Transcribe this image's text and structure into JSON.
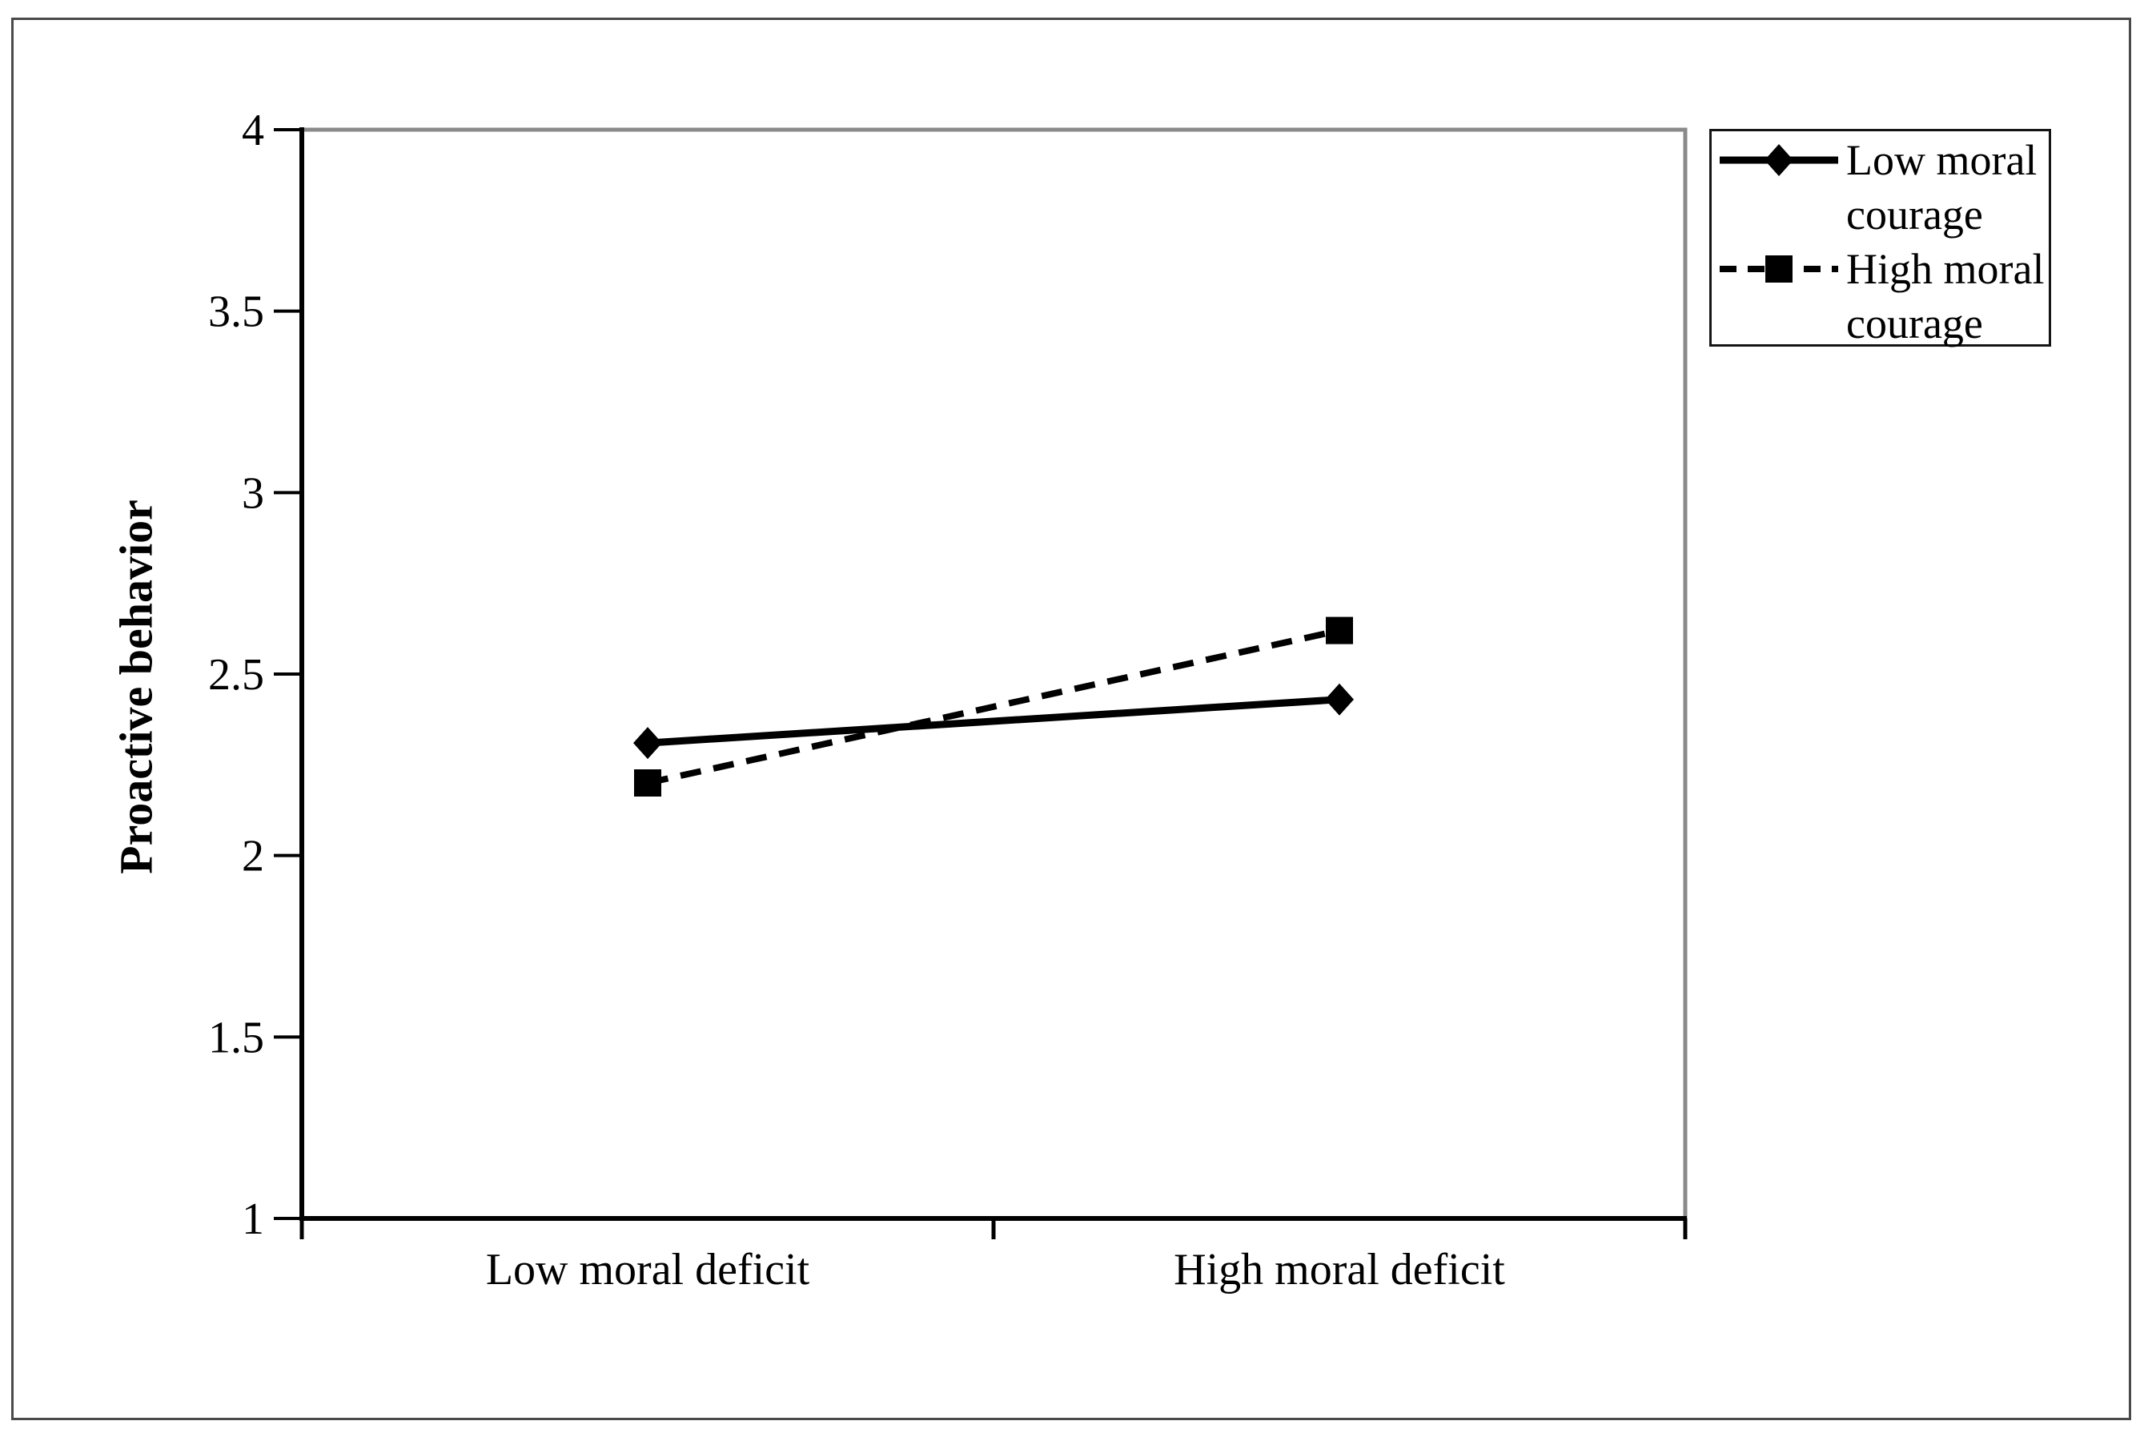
{
  "figure": {
    "background": "#ffffff",
    "border_color": "#4a4a4a"
  },
  "chart_data": {
    "type": "line",
    "title": "",
    "categories": [
      "Low moral deficit",
      "High moral deficit"
    ],
    "series": [
      {
        "name": "Low moral courage",
        "values": [
          2.31,
          2.43
        ],
        "line_style": "solid",
        "marker": "diamond",
        "color": "#000000"
      },
      {
        "name": "High moral courage",
        "values": [
          2.2,
          2.62
        ],
        "line_style": "dashed",
        "marker": "square",
        "color": "#000000"
      }
    ],
    "xlabel": "",
    "ylabel": "Proactive behavior",
    "ylim": [
      1,
      4
    ],
    "yticks": [
      {
        "value": 4,
        "label": "4"
      },
      {
        "value": 3.5,
        "label": "3.5"
      },
      {
        "value": 3,
        "label": "3"
      },
      {
        "value": 2.5,
        "label": "2.5"
      },
      {
        "value": 2,
        "label": "2"
      },
      {
        "value": 1.5,
        "label": "1.5"
      },
      {
        "value": 1,
        "label": "1"
      }
    ],
    "grid": false,
    "legend_position": "top-right",
    "plot_border_color": "#8a8a8a",
    "axis_color": "#000000"
  }
}
